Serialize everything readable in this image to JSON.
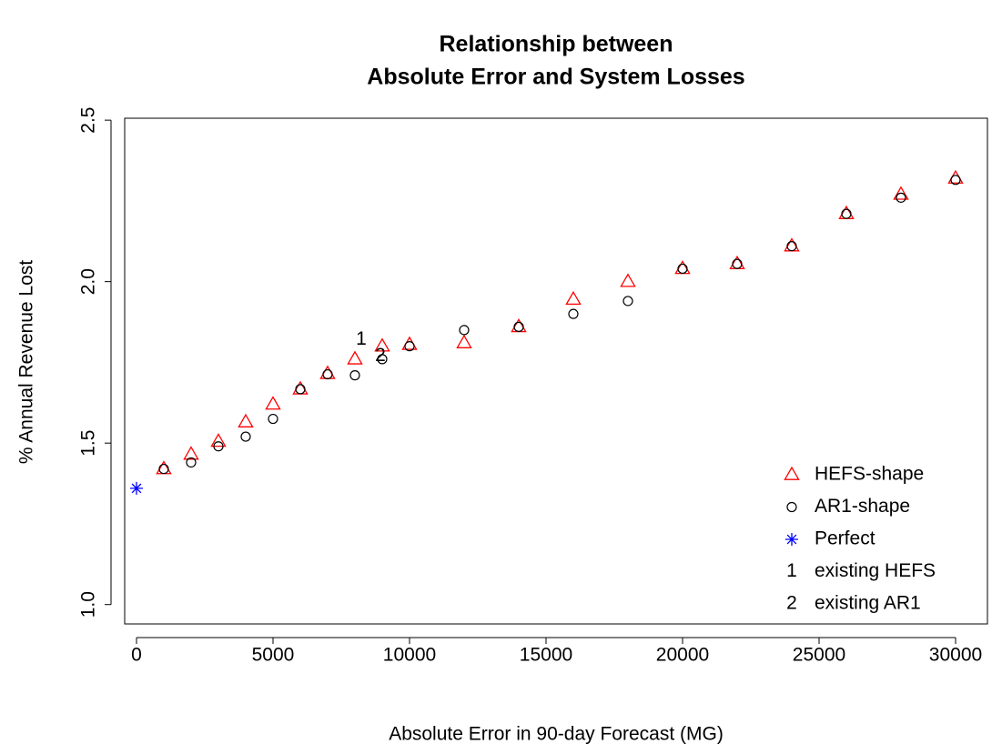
{
  "chart_data": {
    "type": "scatter",
    "title_lines": [
      "Relationship between",
      "Absolute Error and System Losses"
    ],
    "x_label": "Absolute Error in 90-day Forecast (MG)",
    "y_label": "% Annual Revenue Lost",
    "xlim": [
      -433,
      31167
    ],
    "ylim": [
      0.94,
      2.506
    ],
    "xticks": [
      0,
      5000,
      10000,
      15000,
      20000,
      25000,
      30000
    ],
    "yticks": [
      {
        "value": 1,
        "label": "1.0"
      },
      1.5,
      {
        "value": 2,
        "label": "2.0"
      },
      2.5
    ],
    "legend": "bottom-right",
    "series": [
      {
        "name": "HEFS-shape",
        "color": "#ff0000",
        "marker": "triangle",
        "x": [
          1000,
          2000,
          3000,
          4000,
          5000,
          6000,
          7000,
          8000,
          9000,
          10000,
          12000,
          14000,
          16000,
          18000,
          20000,
          22000,
          24000,
          26000,
          28000,
          30000
        ],
        "values": [
          1.42,
          1.465,
          1.505,
          1.565,
          1.62,
          1.667,
          1.715,
          1.76,
          1.8,
          1.805,
          1.81,
          1.86,
          1.945,
          2.0,
          2.04,
          2.055,
          2.11,
          2.21,
          2.27,
          2.32
        ]
      },
      {
        "name": "AR1-shape",
        "color": "#000000",
        "marker": "circle",
        "x": [
          1000,
          2000,
          3000,
          4000,
          5000,
          6000,
          7000,
          8000,
          9000,
          10000,
          12000,
          14000,
          16000,
          18000,
          20000,
          22000,
          24000,
          26000,
          28000,
          30000
        ],
        "values": [
          1.42,
          1.44,
          1.49,
          1.52,
          1.575,
          1.667,
          1.713,
          1.71,
          1.76,
          1.8,
          1.85,
          1.86,
          1.9,
          1.94,
          2.04,
          2.055,
          2.11,
          2.21,
          2.26,
          2.315
        ]
      },
      {
        "name": "Perfect",
        "color": "#0000ff",
        "marker": "asterisk",
        "x": [
          0
        ],
        "values": [
          1.36
        ]
      },
      {
        "name": "existing HEFS",
        "color": "#000000",
        "marker": "1",
        "x": [
          8233
        ],
        "values": [
          1.82
        ]
      },
      {
        "name": "existing AR1",
        "color": "#000000",
        "marker": "2",
        "x": [
          8933
        ],
        "values": [
          1.77
        ]
      }
    ]
  }
}
